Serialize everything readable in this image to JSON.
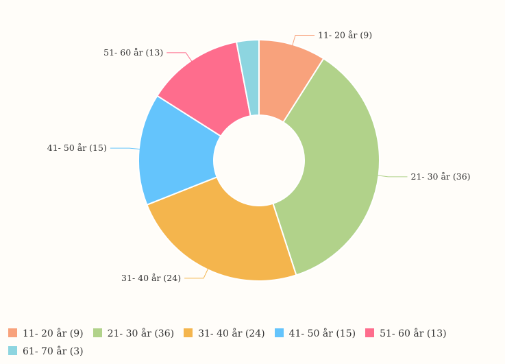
{
  "chart_data": {
    "type": "pie",
    "donut": true,
    "categories": [
      "11- 20 år",
      "21- 30 år",
      "31- 40 år",
      "41- 50 år",
      "51- 60 år",
      "61- 70 år"
    ],
    "values": [
      9,
      36,
      24,
      15,
      13,
      3
    ],
    "data_labels": [
      "11- 20 år (9)",
      "21- 30 år (36)",
      "31- 40 år (24)",
      "41- 50 år (15)",
      "51- 60 år (13)",
      ""
    ],
    "colors": [
      "#f8a27c",
      "#b1d28a",
      "#f4b54d",
      "#64c4fc",
      "#fe6d8d",
      "#8dd5e0"
    ],
    "legend": {
      "position": "bottom-left",
      "entries": [
        "11- 20 år (9)",
        "21- 30 år (36)",
        "31- 40 år (24)",
        "41- 50 år (15)",
        "51- 60 år (13)",
        "61- 70 år (3)"
      ]
    },
    "title": "",
    "start_angle_deg": 0,
    "direction": "clockwise"
  }
}
